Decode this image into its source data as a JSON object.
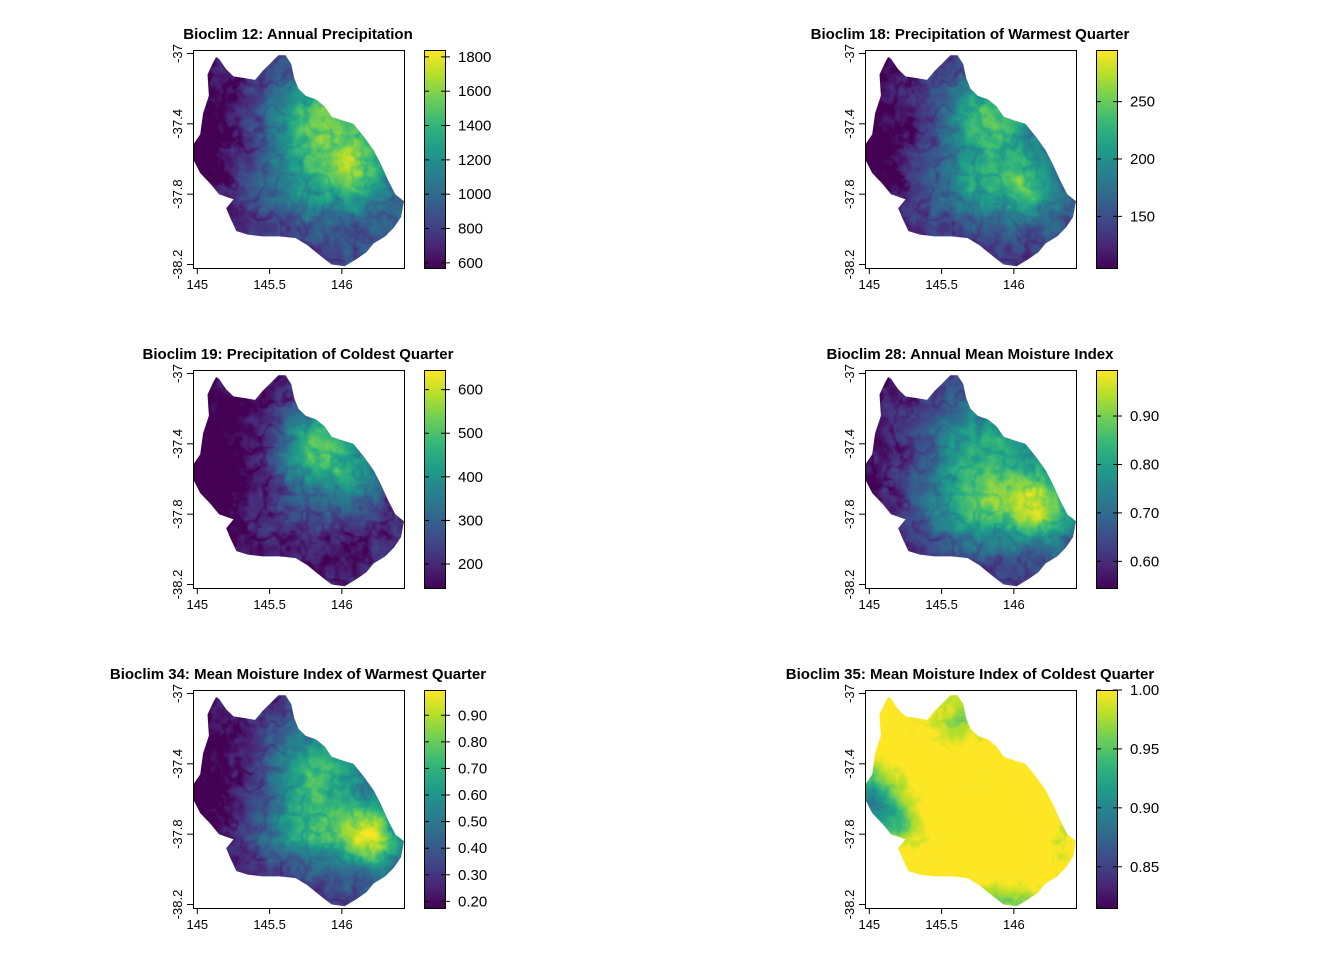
{
  "chart_data": [
    {
      "type": "heatmap",
      "title": "Bioclim 12: Annual Precipitation",
      "xticks": [
        "145",
        "145.5",
        "146"
      ],
      "xtick_values": [
        145,
        145.5,
        146
      ],
      "yticks": [
        "-37",
        "-37.4",
        "-37.8",
        "-38.2"
      ],
      "ytick_values": [
        -37,
        -37.4,
        -37.8,
        -38.2
      ],
      "xlim": [
        144.97,
        146.43
      ],
      "ylim": [
        -38.22,
        -36.98
      ],
      "colorbar": {
        "ticks": [
          "600",
          "800",
          "1000",
          "1200",
          "1400",
          "1600",
          "1800"
        ],
        "tick_values": [
          600,
          800,
          1000,
          1200,
          1400,
          1600,
          1800
        ],
        "range": [
          570,
          1840
        ]
      },
      "grid": false
    },
    {
      "type": "heatmap",
      "title": "Bioclim 18: Precipitation of Warmest Quarter",
      "xticks": [
        "145",
        "145.5",
        "146"
      ],
      "xtick_values": [
        145,
        145.5,
        146
      ],
      "yticks": [
        "-37",
        "-37.4",
        "-37.8",
        "-38.2"
      ],
      "ytick_values": [
        -37,
        -37.4,
        -37.8,
        -38.2
      ],
      "xlim": [
        144.97,
        146.43
      ],
      "ylim": [
        -38.22,
        -36.98
      ],
      "colorbar": {
        "ticks": [
          "150",
          "200",
          "250"
        ],
        "tick_values": [
          150,
          200,
          250
        ],
        "range": [
          105,
          295
        ]
      },
      "grid": false
    },
    {
      "type": "heatmap",
      "title": "Bioclim 19: Precipitation of Coldest Quarter",
      "xticks": [
        "145",
        "145.5",
        "146"
      ],
      "xtick_values": [
        145,
        145.5,
        146
      ],
      "yticks": [
        "-37",
        "-37.4",
        "-37.8",
        "-38.2"
      ],
      "ytick_values": [
        -37,
        -37.4,
        -37.8,
        -38.2
      ],
      "xlim": [
        144.97,
        146.43
      ],
      "ylim": [
        -38.22,
        -36.98
      ],
      "colorbar": {
        "ticks": [
          "200",
          "300",
          "400",
          "500",
          "600"
        ],
        "tick_values": [
          200,
          300,
          400,
          500,
          600
        ],
        "range": [
          145,
          645
        ]
      },
      "grid": false
    },
    {
      "type": "heatmap",
      "title": "Bioclim 28: Annual Mean Moisture Index",
      "xticks": [
        "145",
        "145.5",
        "146"
      ],
      "xtick_values": [
        145,
        145.5,
        146
      ],
      "yticks": [
        "-37",
        "-37.4",
        "-37.8",
        "-38.2"
      ],
      "ytick_values": [
        -37,
        -37.4,
        -37.8,
        -38.2
      ],
      "xlim": [
        144.97,
        146.43
      ],
      "ylim": [
        -38.22,
        -36.98
      ],
      "colorbar": {
        "ticks": [
          "0.60",
          "0.70",
          "0.80",
          "0.90"
        ],
        "tick_values": [
          0.6,
          0.7,
          0.8,
          0.9
        ],
        "range": [
          0.545,
          0.995
        ]
      },
      "grid": false
    },
    {
      "type": "heatmap",
      "title": "Bioclim 34: Mean Moisture Index of Warmest Quarter",
      "xticks": [
        "145",
        "145.5",
        "146"
      ],
      "xtick_values": [
        145,
        145.5,
        146
      ],
      "yticks": [
        "-37",
        "-37.4",
        "-37.8",
        "-38.2"
      ],
      "ytick_values": [
        -37,
        -37.4,
        -37.8,
        -38.2
      ],
      "xlim": [
        144.97,
        146.43
      ],
      "ylim": [
        -38.22,
        -36.98
      ],
      "colorbar": {
        "ticks": [
          "0.20",
          "0.30",
          "0.40",
          "0.50",
          "0.60",
          "0.70",
          "0.80",
          "0.90"
        ],
        "tick_values": [
          0.2,
          0.3,
          0.4,
          0.5,
          0.6,
          0.7,
          0.8,
          0.9
        ],
        "range": [
          0.175,
          0.995
        ]
      },
      "grid": false
    },
    {
      "type": "heatmap",
      "title": "Bioclim 35: Mean Moisture Index of Coldest Quarter",
      "xticks": [
        "145",
        "145.5",
        "146"
      ],
      "xtick_values": [
        145,
        145.5,
        146
      ],
      "yticks": [
        "-37",
        "-37.4",
        "-37.8",
        "-38.2"
      ],
      "ytick_values": [
        -37,
        -37.4,
        -37.8,
        -38.2
      ],
      "xlim": [
        144.97,
        146.43
      ],
      "ylim": [
        -38.22,
        -36.98
      ],
      "colorbar": {
        "ticks": [
          "0.85",
          "0.90",
          "0.95",
          "1.00"
        ],
        "tick_values": [
          0.85,
          0.9,
          0.95,
          1.0
        ],
        "range": [
          0.815,
          1.0
        ]
      },
      "grid": false
    }
  ],
  "colors": {
    "viridis": [
      "#440154",
      "#482878",
      "#3e4a89",
      "#31688e",
      "#26828e",
      "#1f9e89",
      "#35b779",
      "#6ece58",
      "#b5de2b",
      "#fde725"
    ]
  }
}
